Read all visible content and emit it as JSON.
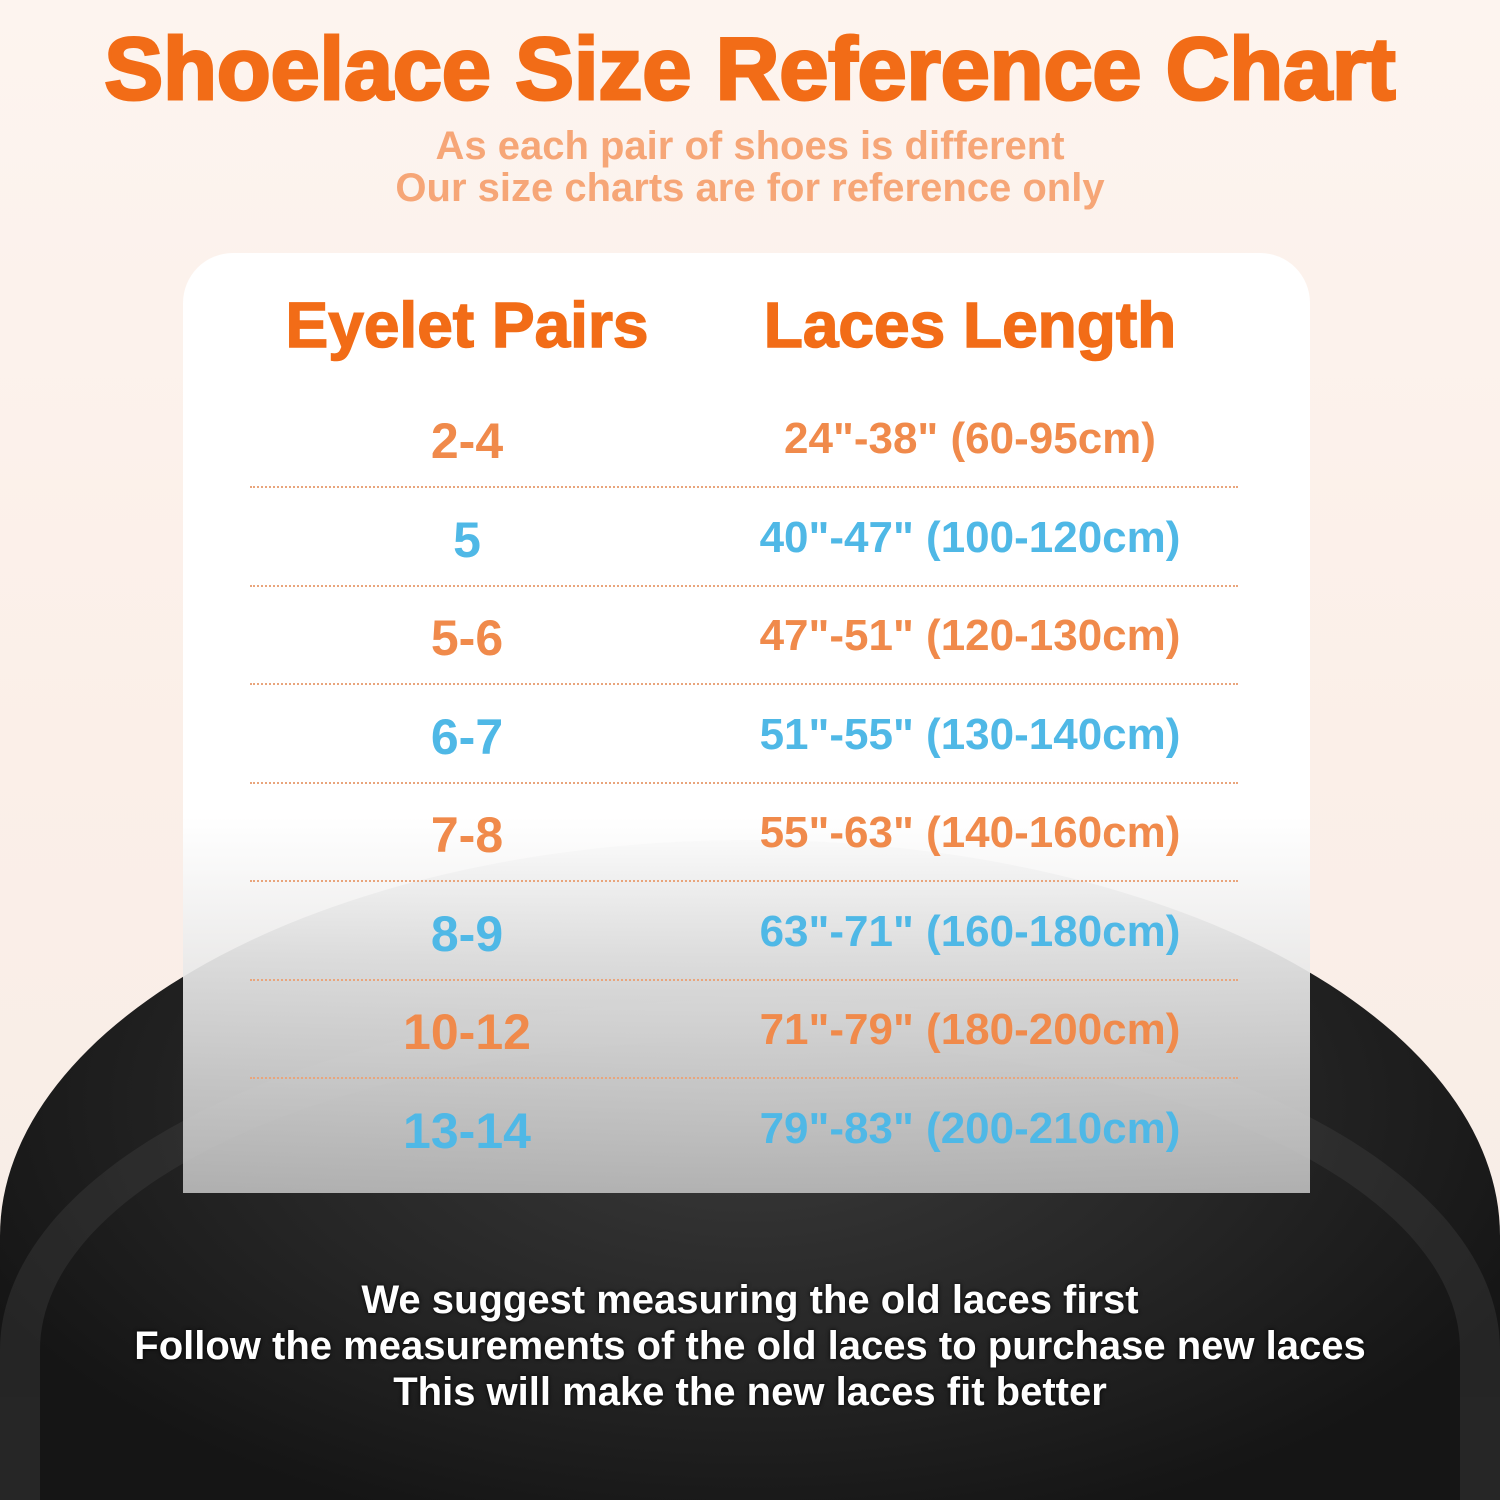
{
  "title": "Shoelace Size Reference Chart",
  "subtitle": [
    "As each pair of shoes is different",
    "Our size charts are for reference only"
  ],
  "colors": {
    "title": "#f26c17",
    "orange_row": "#f08a4b",
    "blue_row": "#4fb8e6",
    "subtitle": "#f6a677"
  },
  "table": {
    "headers": [
      "Eyelet Pairs",
      "Laces Length"
    ],
    "rows": [
      {
        "pairs": "2-4",
        "length": "24\"-38\" (60-95cm)",
        "color": "#f08a4b"
      },
      {
        "pairs": "5",
        "length": "40\"-47\" (100-120cm)",
        "color": "#4fb8e6"
      },
      {
        "pairs": "5-6",
        "length": "47\"-51\" (120-130cm)",
        "color": "#f08a4b"
      },
      {
        "pairs": "6-7",
        "length": "51\"-55\" (130-140cm)",
        "color": "#4fb8e6"
      },
      {
        "pairs": "7-8",
        "length": "55\"-63\" (140-160cm)",
        "color": "#f08a4b"
      },
      {
        "pairs": "8-9",
        "length": "63\"-71\" (160-180cm)",
        "color": "#4fb8e6"
      },
      {
        "pairs": "10-12",
        "length": "71\"-79\" (180-200cm)",
        "color": "#f08a4b"
      },
      {
        "pairs": "13-14",
        "length": "79\"-83\" (200-210cm)",
        "color": "#4fb8e6"
      }
    ]
  },
  "footer": [
    "We suggest measuring the old laces first",
    "Follow the measurements of the old laces to purchase new laces",
    "This will make the new laces fit better"
  ]
}
